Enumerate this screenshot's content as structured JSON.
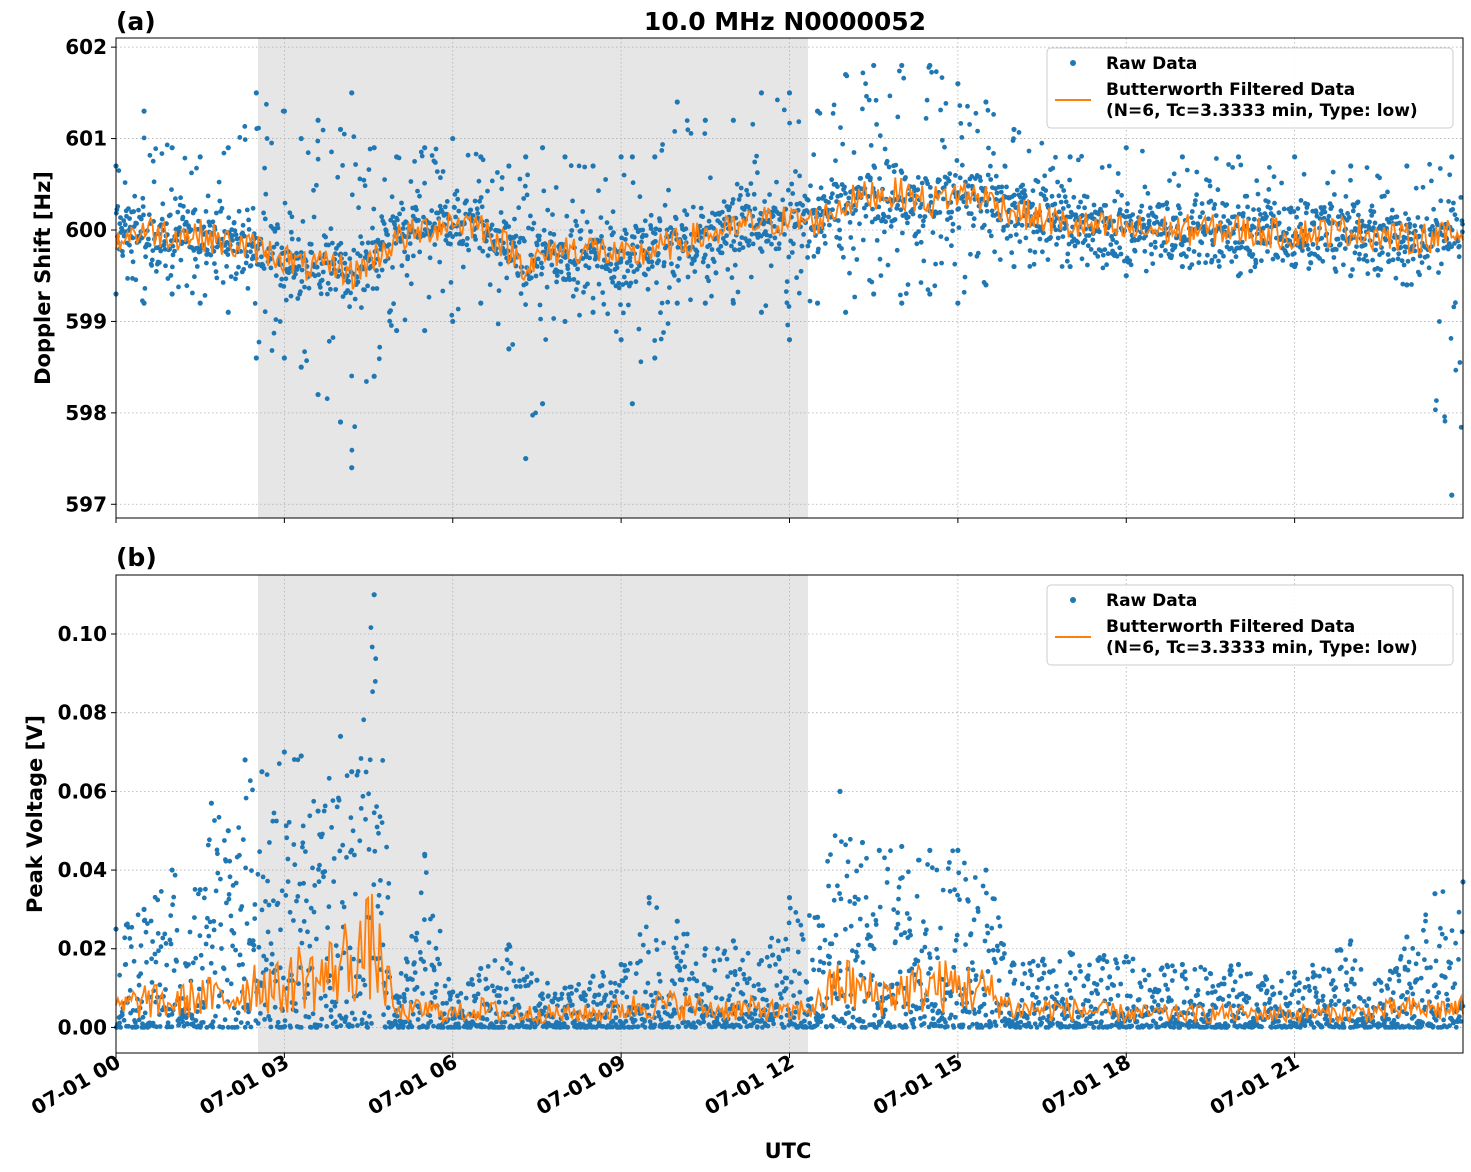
{
  "figure": {
    "title": "10.0 MHz N0000052",
    "xlabel": "UTC"
  },
  "colors": {
    "raw": "#1f77b4",
    "filtered": "#ff7f0e",
    "shade": "#e6e6e6",
    "grid": "#b0b0b0"
  },
  "chart_data": [
    {
      "type": "scatter",
      "panel_label": "(a)",
      "ylabel": "Doppler Shift [Hz]",
      "xlim": [
        0,
        24
      ],
      "x_unit": "hours UTC, 07-01",
      "ylim": [
        596.85,
        602.1
      ],
      "yticks": [
        597,
        598,
        599,
        600,
        601,
        602
      ],
      "ytick_labels": [
        "597",
        "598",
        "599",
        "600",
        "601",
        "602"
      ],
      "xticks": [
        0,
        3,
        6,
        9,
        12,
        15,
        18,
        21
      ],
      "xtick_labels": [
        "07-01 00",
        "07-01 03",
        "07-01 06",
        "07-01 09",
        "07-01 12",
        "07-01 15",
        "07-01 18",
        "07-01 21"
      ],
      "shaded_x_range": [
        2.53,
        12.33
      ],
      "grid": true,
      "legend_position": "upper right",
      "legend": [
        "Raw Data",
        "Butterworth Filtered Data",
        "(N=6, Tc=3.3333 min, Type: low)"
      ],
      "series": [
        {
          "name": "Raw Data",
          "kind": "scatter",
          "x": [
            0,
            0.5,
            1,
            1.5,
            2,
            2.5,
            3,
            3.3,
            3.6,
            4,
            4.2,
            4.6,
            5,
            5.5,
            6,
            6.5,
            7,
            7.3,
            7.6,
            8,
            8.5,
            9,
            9.2,
            9.6,
            10,
            10.5,
            11,
            11.5,
            12,
            12.5,
            13,
            13.5,
            14,
            14.5,
            15,
            15.5,
            16,
            17,
            18,
            19,
            20,
            21,
            22,
            23,
            23.8
          ],
          "y_min": [
            599.3,
            599.2,
            599.3,
            599.2,
            599.1,
            598.6,
            598.6,
            598.5,
            598.2,
            597.9,
            597.4,
            598.4,
            598.9,
            598.9,
            599.0,
            599.2,
            598.7,
            597.5,
            598.1,
            599.0,
            599.1,
            598.8,
            598.1,
            598.6,
            599.2,
            599.2,
            599.2,
            599.1,
            598.8,
            599.2,
            599.1,
            599.3,
            599.2,
            599.3,
            599.2,
            599.4,
            599.6,
            599.6,
            599.5,
            599.6,
            599.5,
            599.6,
            599.5,
            599.4,
            597.1
          ],
          "y_max": [
            600.7,
            601.3,
            600.9,
            600.8,
            600.9,
            601.5,
            601.3,
            601.0,
            601.2,
            601.1,
            601.5,
            600.9,
            600.8,
            600.9,
            601.0,
            600.8,
            600.7,
            600.8,
            600.9,
            600.8,
            600.7,
            600.8,
            600.8,
            600.8,
            601.4,
            601.2,
            601.2,
            601.5,
            601.5,
            601.3,
            601.7,
            601.8,
            601.8,
            601.8,
            601.6,
            601.4,
            601.1,
            600.8,
            600.9,
            600.8,
            600.8,
            600.8,
            600.7,
            600.7,
            600.8
          ]
        },
        {
          "name": "Butterworth Filtered Data",
          "kind": "line",
          "x": [
            0,
            0.5,
            1,
            1.5,
            2,
            2.5,
            3,
            3.3,
            3.6,
            4,
            4.2,
            4.6,
            5,
            5.5,
            6,
            6.5,
            7,
            7.3,
            7.6,
            8,
            8.5,
            9,
            9.2,
            9.6,
            10,
            10.5,
            11,
            11.5,
            12,
            12.5,
            13,
            13.5,
            14,
            14.5,
            15,
            15.5,
            16,
            17,
            18,
            19,
            20,
            21,
            22,
            23,
            24
          ],
          "y": [
            599.9,
            600.0,
            599.95,
            599.95,
            599.85,
            599.8,
            599.7,
            599.6,
            599.6,
            599.6,
            599.5,
            599.7,
            599.9,
            600.0,
            600.1,
            600.05,
            599.8,
            599.6,
            599.7,
            599.8,
            599.8,
            599.7,
            599.7,
            599.8,
            599.85,
            599.95,
            600.0,
            600.1,
            600.1,
            600.1,
            600.3,
            600.4,
            600.4,
            600.3,
            600.4,
            600.35,
            600.2,
            600.05,
            600.0,
            600.0,
            600.0,
            599.95,
            600.0,
            599.9,
            599.95
          ]
        }
      ]
    },
    {
      "type": "scatter",
      "panel_label": "(b)",
      "ylabel": "Peak Voltage [V]",
      "xlim": [
        0,
        24
      ],
      "x_unit": "hours UTC, 07-01",
      "ylim": [
        -0.0065,
        0.115
      ],
      "yticks": [
        0,
        0.02,
        0.04,
        0.06,
        0.08,
        0.1
      ],
      "ytick_labels": [
        "0.00",
        "0.02",
        "0.04",
        "0.06",
        "0.08",
        "0.10"
      ],
      "xticks": [
        0,
        3,
        6,
        9,
        12,
        15,
        18,
        21
      ],
      "xtick_labels": [
        "07-01 00",
        "07-01 03",
        "07-01 06",
        "07-01 09",
        "07-01 12",
        "07-01 15",
        "07-01 18",
        "07-01 21"
      ],
      "shaded_x_range": [
        2.53,
        12.33
      ],
      "grid": true,
      "legend_position": "upper right",
      "legend": [
        "Raw Data",
        "Butterworth Filtered Data",
        "(N=6, Tc=3.3333 min, Type: low)"
      ],
      "series": [
        {
          "name": "Raw Data",
          "kind": "scatter",
          "x": [
            0,
            0.5,
            1,
            1.5,
            1.7,
            2,
            2.3,
            2.6,
            3,
            3.3,
            3.6,
            4,
            4.2,
            4.6,
            5,
            5.5,
            6,
            6.5,
            7,
            7.5,
            8,
            8.5,
            9,
            9.5,
            10,
            10.5,
            11,
            11.5,
            12,
            12.5,
            12.9,
            13.3,
            13.6,
            14,
            14.5,
            15,
            15.5,
            16,
            17,
            18,
            19,
            20,
            21,
            22,
            22.5,
            23,
            23.5,
            24
          ],
          "y": [
            0.025,
            0.03,
            0.04,
            0.035,
            0.057,
            0.05,
            0.068,
            0.065,
            0.07,
            0.069,
            0.055,
            0.074,
            0.065,
            0.11,
            0.008,
            0.044,
            0.009,
            0.015,
            0.021,
            0.012,
            0.01,
            0.013,
            0.016,
            0.033,
            0.027,
            0.02,
            0.022,
            0.017,
            0.033,
            0.028,
            0.06,
            0.047,
            0.045,
            0.046,
            0.045,
            0.045,
            0.04,
            0.016,
            0.019,
            0.018,
            0.016,
            0.016,
            0.014,
            0.022,
            0.012,
            0.023,
            0.034,
            0.037
          ]
        },
        {
          "name": "Butterworth Filtered Data",
          "kind": "line",
          "x": [
            0,
            0.5,
            1,
            1.5,
            2,
            2.5,
            3,
            3.3,
            3.6,
            4,
            4.3,
            4.6,
            5,
            5.5,
            6,
            6.5,
            7,
            7.5,
            8,
            8.5,
            9,
            9.5,
            10,
            10.5,
            11,
            11.5,
            12,
            12.5,
            12.9,
            13.3,
            13.6,
            14,
            14.5,
            15,
            15.5,
            16,
            17,
            18,
            19,
            20,
            21,
            22,
            23,
            24
          ],
          "y": [
            0.004,
            0.006,
            0.005,
            0.007,
            0.006,
            0.01,
            0.008,
            0.012,
            0.01,
            0.014,
            0.016,
            0.018,
            0.003,
            0.004,
            0.003,
            0.004,
            0.003,
            0.003,
            0.003,
            0.003,
            0.004,
            0.005,
            0.005,
            0.004,
            0.004,
            0.004,
            0.003,
            0.005,
            0.01,
            0.008,
            0.007,
            0.008,
            0.009,
            0.009,
            0.008,
            0.004,
            0.004,
            0.003,
            0.003,
            0.003,
            0.003,
            0.003,
            0.004,
            0.004
          ]
        }
      ]
    }
  ]
}
